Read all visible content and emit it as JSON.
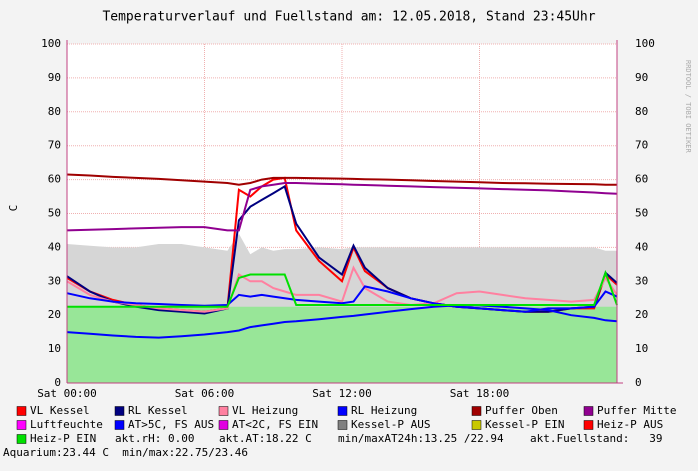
{
  "chart_data": {
    "type": "line",
    "title": "Temperaturverlauf und Fuellstand am: 12.05.2018, Stand 23:45Uhr",
    "y_label": "C",
    "side_label": "RRDTOOL / TOBI OETIKER",
    "xlim": [
      0,
      24
    ],
    "xticks": [
      {
        "value": 0,
        "label": "Sat 00:00"
      },
      {
        "value": 6,
        "label": "Sat 06:00"
      },
      {
        "value": 12,
        "label": "Sat 12:00"
      },
      {
        "value": 18,
        "label": "Sat 18:00"
      }
    ],
    "ylim": [
      0,
      100
    ],
    "yticks": [
      0,
      10,
      20,
      30,
      40,
      50,
      60,
      70,
      80,
      90,
      100
    ],
    "grid": true,
    "x": [
      0,
      1,
      2,
      3,
      4,
      5,
      6,
      7,
      7.5,
      8,
      8.5,
      9,
      9.5,
      10,
      11,
      12,
      12.5,
      13,
      14,
      15,
      16,
      17,
      18,
      19,
      20,
      21,
      22,
      23,
      23.5,
      24
    ],
    "series": [
      {
        "name": "VL Kessel",
        "color": "#ff0000",
        "values": [
          31,
          27,
          24.5,
          23,
          22,
          21.5,
          21,
          22,
          57,
          55,
          58,
          60,
          60.5,
          45,
          36,
          30,
          40,
          33,
          28,
          25,
          23.5,
          22.5,
          22,
          21.5,
          21,
          21,
          22,
          22,
          32,
          29
        ]
      },
      {
        "name": "RL Kessel",
        "color": "#000080",
        "values": [
          31.5,
          27,
          24,
          22.5,
          21.5,
          21,
          20.5,
          22,
          48,
          52,
          54,
          56,
          58,
          47,
          37,
          32,
          40.5,
          34,
          28,
          25,
          23.5,
          22.5,
          22,
          21.5,
          21,
          21,
          22,
          22.5,
          32.5,
          29.5
        ]
      },
      {
        "name": "VL Heizung",
        "color": "#ff80a0",
        "values": [
          30,
          26,
          24,
          23,
          22,
          21.5,
          21,
          22,
          32,
          30,
          30,
          28,
          27,
          26,
          26,
          24,
          34,
          28,
          24,
          23,
          23.5,
          26.5,
          27,
          26,
          25,
          24.5,
          24,
          24.5,
          31,
          26
        ]
      },
      {
        "name": "RL Heizung",
        "color": "#0000ff",
        "values": [
          26.5,
          25,
          24,
          23.5,
          23.3,
          23,
          22.8,
          23,
          26,
          25.5,
          26,
          25.5,
          25,
          24.5,
          24,
          23.5,
          24,
          28.5,
          27,
          25,
          23.5,
          22.5,
          22,
          21.5,
          21,
          22,
          22,
          22.5,
          27,
          25.5
        ]
      },
      {
        "name": "Puffer Oben",
        "color": "#a00000",
        "values": [
          61.5,
          61.2,
          60.8,
          60.5,
          60.2,
          59.8,
          59.4,
          59,
          58.5,
          59,
          60,
          60.5,
          60.5,
          60.5,
          60.4,
          60.3,
          60.2,
          60.1,
          60,
          59.8,
          59.6,
          59.4,
          59.2,
          59,
          58.9,
          58.8,
          58.7,
          58.6,
          58.5,
          58.5
        ]
      },
      {
        "name": "Puffer Mitte",
        "color": "#900090",
        "values": [
          45,
          45.2,
          45.4,
          45.6,
          45.8,
          46,
          46,
          45,
          45,
          57,
          58,
          58.5,
          59,
          59,
          58.8,
          58.6,
          58.5,
          58.4,
          58.2,
          58,
          57.8,
          57.6,
          57.4,
          57.2,
          57,
          56.8,
          56.5,
          56.2,
          56,
          55.8
        ]
      },
      {
        "name": "AT>5C, FS AUS",
        "color": "#0000ff",
        "values": [
          15,
          14.5,
          14,
          13.6,
          13.4,
          13.8,
          14.3,
          15,
          15.5,
          16.5,
          17,
          17.5,
          18,
          18.2,
          18.8,
          19.5,
          19.8,
          20.2,
          21,
          21.8,
          22.5,
          22.9,
          22.9,
          22.5,
          22,
          21.5,
          20,
          19.2,
          18.5,
          18.2
        ]
      },
      {
        "name": "Heiz-P EIN",
        "color": "#00e000",
        "values": [
          22.5,
          22.5,
          22.5,
          22.5,
          22.5,
          22.5,
          22.5,
          22.5,
          31,
          32,
          32,
          32,
          32,
          23,
          23,
          23,
          23,
          23,
          23,
          23,
          23,
          23,
          23,
          23,
          23,
          23,
          23,
          23,
          32.5,
          23
        ]
      },
      {
        "name": "Kessel-P AUS",
        "color": "#808080",
        "fill": "#d6d6d6",
        "kind": "area",
        "values": [
          41,
          40.5,
          40,
          40,
          41,
          41,
          40,
          39,
          44,
          38,
          40,
          39,
          39.5,
          39.5,
          40,
          39.5,
          40,
          40,
          40,
          40,
          40,
          40,
          40,
          40,
          40,
          40,
          40,
          40,
          39,
          39
        ]
      },
      {
        "color": "#98e698",
        "kind": "area",
        "values": [
          22.5,
          22.5,
          22.5,
          22.5,
          22.5,
          22.5,
          22.5,
          22.5,
          22.5,
          22.5,
          22.5,
          22.5,
          22.5,
          22.5,
          22.5,
          22.5,
          22.5,
          22.5,
          22.5,
          22.5,
          22.5,
          22.5,
          22.5,
          22.5,
          22.5,
          22.5,
          22.5,
          22.5,
          22.5,
          22.5
        ]
      }
    ],
    "legend_only": [
      {
        "name": "Luftfeuchte",
        "color": "#ff00ff"
      },
      {
        "name": "AT<2C, FS EIN",
        "color": "#e000e0"
      },
      {
        "name": "Kessel-P EIN",
        "color": "#c8c800"
      },
      {
        "name": "Heiz-P AUS",
        "color": "#ff0000"
      }
    ],
    "notes": [
      "akt.rH: 0.00",
      "akt.AT:18.22 C",
      "min/maxAT24h:13.25 /22.94",
      "akt.Fuellstand:   39",
      "Aquarium:23.44 C  min/max:22.75/23.46"
    ]
  }
}
